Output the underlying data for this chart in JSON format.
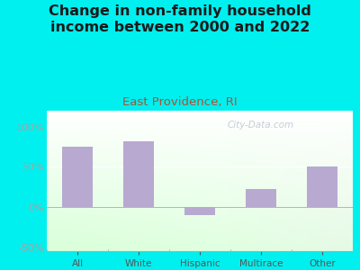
{
  "title": "Change in non-family household\nincome between 2000 and 2022",
  "subtitle": "East Providence, RI",
  "categories": [
    "All",
    "White",
    "Hispanic",
    "Multirace",
    "Other"
  ],
  "values": [
    75,
    82,
    -10,
    22,
    50
  ],
  "bar_color": "#b8a9d0",
  "background_color": "#00efef",
  "title_color": "#1a1a1a",
  "subtitle_color": "#b05030",
  "ytick_color": "#b0a0a0",
  "xtick_color": "#555555",
  "ylim": [
    -55,
    120
  ],
  "yticks": [
    -50,
    0,
    50,
    100
  ],
  "watermark": "City-Data.com",
  "title_fontsize": 11.5,
  "subtitle_fontsize": 9.5,
  "bar_width": 0.5
}
